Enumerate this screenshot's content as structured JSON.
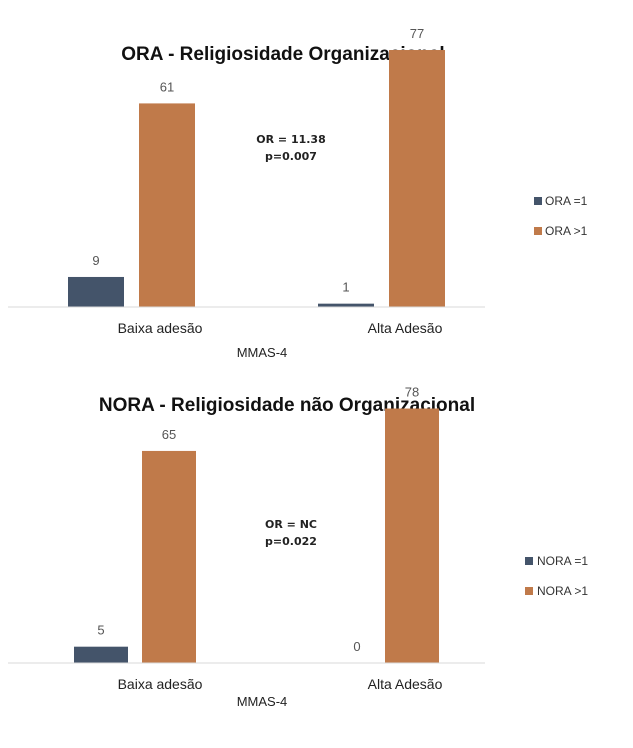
{
  "colors": {
    "series1": "#44546a",
    "series2": "#c07a4a",
    "axis": "#d9d9d9"
  },
  "chart_data": [
    {
      "type": "bar",
      "title": "ORA - Religiosidade Organizacional",
      "xlabel": "MMAS-4",
      "ylabel": "",
      "categories": [
        "Baixa adesão",
        "Alta Adesão"
      ],
      "series": [
        {
          "name": "ORA =1",
          "values": [
            9,
            1
          ]
        },
        {
          "name": "ORA >1",
          "values": [
            61,
            77
          ]
        }
      ],
      "ylim": [
        0,
        80
      ],
      "grid": false,
      "legend": "right",
      "annotation": [
        "OR = 11.38",
        "p=0.007"
      ]
    },
    {
      "type": "bar",
      "title": "NORA - Religiosidade não Organizacional",
      "xlabel": "MMAS-4",
      "ylabel": "",
      "categories": [
        "Baixa adesão",
        "Alta Adesão"
      ],
      "series": [
        {
          "name": "NORA =1",
          "values": [
            5,
            0
          ]
        },
        {
          "name": "NORA >1",
          "values": [
            65,
            78
          ]
        }
      ],
      "ylim": [
        0,
        80
      ],
      "grid": false,
      "legend": "right",
      "annotation": [
        "OR = NC",
        "p=0.022"
      ]
    }
  ]
}
